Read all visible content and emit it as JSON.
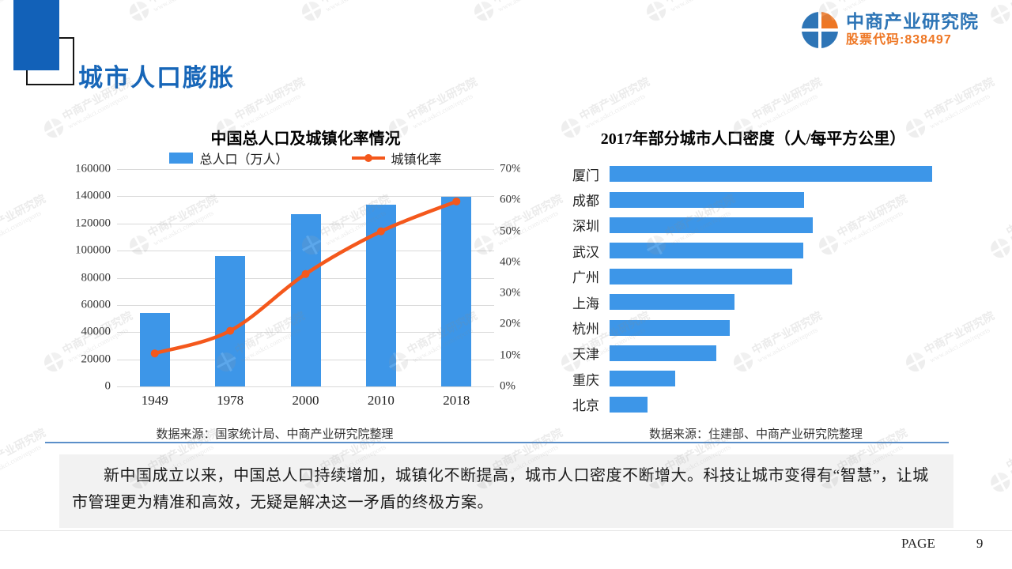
{
  "slide": {
    "title": "城市人口膨胀",
    "page_label": "PAGE",
    "page_number": "9"
  },
  "logo": {
    "company": "中商产业研究院",
    "stock": "股票代码:838497"
  },
  "watermark": {
    "line1": "中商产业研究院",
    "line2": "www.askci.com/reports"
  },
  "summary": {
    "text": "新中国成立以来，中国总人口持续增加，城镇化不断提高，城市人口密度不断增大。科技让城市变得有“智慧”，让城市管理更为精准和高效，无疑是解决这一矛盾的终极方案。"
  },
  "colors": {
    "bar_blue": "#3D96E8",
    "line_orange": "#F4581C",
    "title_blue": "#1766B8",
    "deco_blue": "#1261B8",
    "logo_blue": "#2E75B6",
    "logo_orange": "#EE7623",
    "grid_gray": "#D9D9D9",
    "box_bg": "#F2F2F2",
    "divider_blue": "#5B8FC9"
  },
  "chart_data": [
    {
      "type": "bar+line",
      "title": "中国总人口及城镇化率情况",
      "categories": [
        "1949",
        "1978",
        "2000",
        "2010",
        "2018"
      ],
      "series": [
        {
          "name": "总人口（万人）",
          "type": "bar",
          "axis": "left",
          "values": [
            54167,
            96259,
            126743,
            134091,
            139538
          ]
        },
        {
          "name": "城镇化率",
          "type": "line",
          "axis": "right",
          "unit": "%",
          "values": [
            10.64,
            17.92,
            36.22,
            49.95,
            59.58
          ]
        }
      ],
      "left_axis": {
        "min": 0,
        "max": 160000,
        "tick_step": 20000,
        "labels": [
          "0",
          "20000",
          "40000",
          "60000",
          "80000",
          "100000",
          "120000",
          "140000",
          "160000"
        ]
      },
      "right_axis": {
        "min": 0,
        "max": 70,
        "tick_step": 10,
        "labels": [
          "0%",
          "10%",
          "20%",
          "30%",
          "40%",
          "50%",
          "60%",
          "70%"
        ]
      },
      "grid": true,
      "legend_position": "top",
      "source": "数据来源：国家统计局、中商产业研究院整理"
    },
    {
      "type": "bar",
      "orientation": "horizontal",
      "title": "2017年部分城市人口密度（人/每平方公里）",
      "categories": [
        "厦门",
        "成都",
        "深圳",
        "武汉",
        "广州",
        "上海",
        "杭州",
        "天津",
        "重庆",
        "北京"
      ],
      "values": [
        4310,
        2600,
        2715,
        2590,
        2440,
        1670,
        1605,
        1425,
        875,
        505
      ],
      "values_estimated": true,
      "xlim": [
        0,
        4310
      ],
      "grid": false,
      "source": "数据来源：住建部、中商产业研究院整理"
    }
  ]
}
